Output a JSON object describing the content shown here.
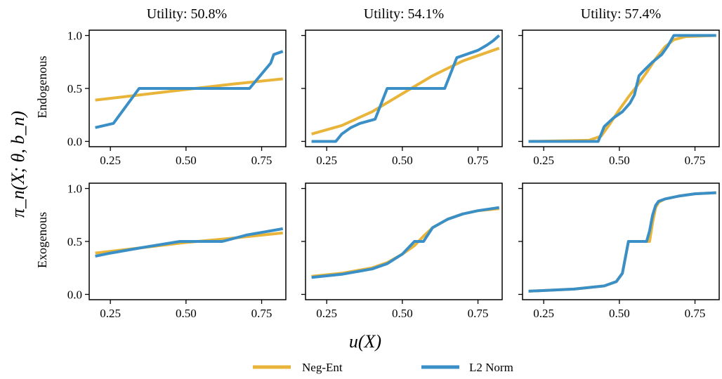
{
  "colors": {
    "neg_ent": "#E8B53A",
    "l2_norm": "#3A8FC6"
  },
  "figure": {
    "col_titles": [
      "Utility: 50.8%",
      "Utility: 54.1%",
      "Utility: 57.4%"
    ],
    "row_labels": [
      "Endogenous",
      "Exogenous"
    ],
    "ylabel": "π_n(X; θ, b_n)",
    "xlabel": "u(X)",
    "legend": [
      {
        "label": "Neg-Ent",
        "color": "#E8B53A"
      },
      {
        "label": "L2 Norm",
        "color": "#3A8FC6"
      }
    ]
  },
  "chart_data": {
    "type": "line",
    "xlim": [
      0.18,
      0.83
    ],
    "ylim": [
      -0.05,
      1.05
    ],
    "xticks": [
      0.25,
      0.5,
      0.75
    ],
    "xtick_labels": [
      "0.25",
      "0.50",
      "0.75"
    ],
    "yticks": [
      0.0,
      0.5,
      1.0
    ],
    "ytick_labels": [
      "0.0",
      "0.5",
      "1.0"
    ],
    "panels": [
      {
        "row": "Endogenous",
        "title": "Utility: 50.8%",
        "series": [
          {
            "name": "Neg-Ent",
            "x": [
              0.2,
              0.35,
              0.5,
              0.65,
              0.82
            ],
            "y": [
              0.39,
              0.44,
              0.49,
              0.54,
              0.59
            ]
          },
          {
            "name": "L2 Norm",
            "x": [
              0.2,
              0.26,
              0.345,
              0.55,
              0.71,
              0.78,
              0.79,
              0.82
            ],
            "y": [
              0.13,
              0.17,
              0.5,
              0.5,
              0.5,
              0.74,
              0.82,
              0.85
            ]
          }
        ]
      },
      {
        "row": "Endogenous",
        "title": "Utility: 54.1%",
        "series": [
          {
            "name": "Neg-Ent",
            "x": [
              0.2,
              0.3,
              0.4,
              0.5,
              0.6,
              0.7,
              0.82
            ],
            "y": [
              0.07,
              0.15,
              0.28,
              0.45,
              0.62,
              0.76,
              0.88
            ]
          },
          {
            "name": "L2 Norm",
            "x": [
              0.2,
              0.28,
              0.3,
              0.33,
              0.36,
              0.41,
              0.45,
              0.55,
              0.64,
              0.68,
              0.71,
              0.75,
              0.78,
              0.8,
              0.82
            ],
            "y": [
              0.0,
              0.0,
              0.07,
              0.13,
              0.17,
              0.21,
              0.5,
              0.5,
              0.5,
              0.79,
              0.82,
              0.86,
              0.91,
              0.95,
              1.0
            ]
          }
        ]
      },
      {
        "row": "Endogenous",
        "title": "Utility: 57.4%",
        "series": [
          {
            "name": "Neg-Ent",
            "x": [
              0.2,
              0.4,
              0.44,
              0.47,
              0.5,
              0.53,
              0.56,
              0.59,
              0.62,
              0.65,
              0.68,
              0.72,
              0.82
            ],
            "y": [
              0.0,
              0.01,
              0.05,
              0.17,
              0.3,
              0.42,
              0.53,
              0.65,
              0.78,
              0.89,
              0.96,
              0.99,
              1.0
            ]
          },
          {
            "name": "L2 Norm",
            "x": [
              0.2,
              0.43,
              0.45,
              0.48,
              0.51,
              0.535,
              0.55,
              0.555,
              0.565,
              0.585,
              0.61,
              0.64,
              0.66,
              0.68,
              0.72,
              0.82
            ],
            "y": [
              0.0,
              0.0,
              0.14,
              0.22,
              0.28,
              0.36,
              0.44,
              0.5,
              0.62,
              0.68,
              0.75,
              0.82,
              0.9,
              1.0,
              1.0,
              1.0
            ]
          }
        ]
      },
      {
        "row": "Exogenous",
        "title": "",
        "series": [
          {
            "name": "Neg-Ent",
            "x": [
              0.2,
              0.35,
              0.5,
              0.65,
              0.82
            ],
            "y": [
              0.39,
              0.44,
              0.49,
              0.53,
              0.58
            ]
          },
          {
            "name": "L2 Norm",
            "x": [
              0.2,
              0.25,
              0.35,
              0.48,
              0.62,
              0.7,
              0.82
            ],
            "y": [
              0.36,
              0.39,
              0.44,
              0.5,
              0.5,
              0.56,
              0.62
            ]
          }
        ]
      },
      {
        "row": "Exogenous",
        "title": "",
        "series": [
          {
            "name": "Neg-Ent",
            "x": [
              0.2,
              0.3,
              0.4,
              0.45,
              0.5,
              0.54,
              0.57,
              0.6,
              0.65,
              0.7,
              0.75,
              0.82
            ],
            "y": [
              0.17,
              0.2,
              0.25,
              0.3,
              0.38,
              0.46,
              0.55,
              0.63,
              0.71,
              0.76,
              0.79,
              0.81
            ]
          },
          {
            "name": "L2 Norm",
            "x": [
              0.2,
              0.3,
              0.4,
              0.45,
              0.5,
              0.54,
              0.57,
              0.6,
              0.65,
              0.7,
              0.75,
              0.82
            ],
            "y": [
              0.16,
              0.19,
              0.24,
              0.29,
              0.38,
              0.5,
              0.5,
              0.63,
              0.71,
              0.76,
              0.79,
              0.82
            ]
          }
        ]
      },
      {
        "row": "Exogenous",
        "title": "",
        "series": [
          {
            "name": "Neg-Ent",
            "x": [
              0.2,
              0.35,
              0.45,
              0.49,
              0.51,
              0.52,
              0.53,
              0.6,
              0.61,
              0.62,
              0.63,
              0.65,
              0.7,
              0.75,
              0.82
            ],
            "y": [
              0.03,
              0.05,
              0.08,
              0.12,
              0.2,
              0.35,
              0.5,
              0.5,
              0.68,
              0.82,
              0.87,
              0.9,
              0.93,
              0.95,
              0.96
            ]
          },
          {
            "name": "L2 Norm",
            "x": [
              0.2,
              0.35,
              0.45,
              0.49,
              0.51,
              0.52,
              0.53,
              0.59,
              0.6,
              0.61,
              0.62,
              0.63,
              0.65,
              0.7,
              0.75,
              0.82
            ],
            "y": [
              0.03,
              0.05,
              0.08,
              0.12,
              0.2,
              0.35,
              0.5,
              0.5,
              0.6,
              0.75,
              0.84,
              0.88,
              0.9,
              0.93,
              0.95,
              0.96
            ]
          }
        ]
      }
    ]
  }
}
